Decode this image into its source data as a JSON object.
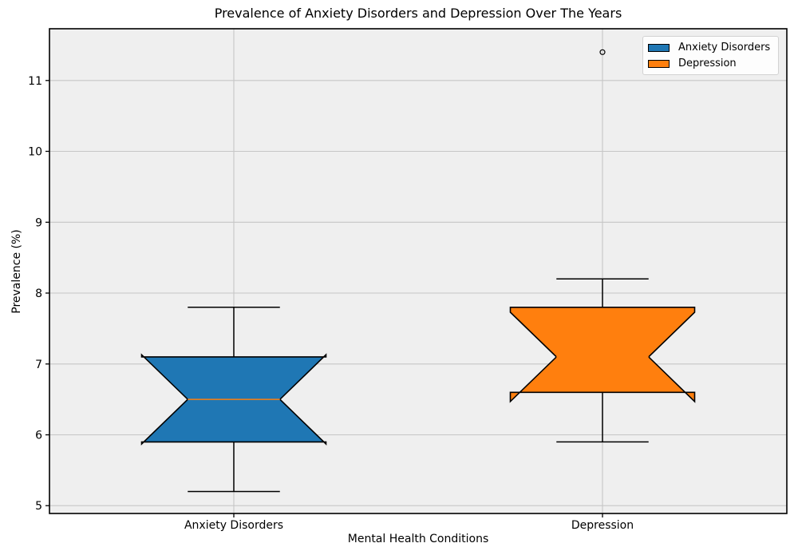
{
  "chart_data": {
    "type": "box",
    "title": "Prevalence of Anxiety Disorders and Depression Over The Years",
    "xlabel": "Mental Health Conditions",
    "ylabel": "Prevalence (%)",
    "categories": [
      "Anxiety Disorders",
      "Depression"
    ],
    "x_positions": [
      1,
      2
    ],
    "xlim": [
      0.5,
      2.5
    ],
    "ylim": [
      4.89,
      11.73
    ],
    "yticks": [
      5,
      6,
      7,
      8,
      9,
      10,
      11
    ],
    "grid": true,
    "notch": true,
    "box_width": 0.5,
    "legend_position": "upper right",
    "series": [
      {
        "name": "Anxiety Disorders",
        "color": "#1f77b4",
        "stats": {
          "whislo": 5.2,
          "q1": 5.9,
          "med": 6.5,
          "q3": 7.1,
          "whishi": 7.8,
          "cilo": 5.87,
          "cihi": 7.13,
          "fliers": []
        }
      },
      {
        "name": "Depression",
        "color": "#ff7f0e",
        "stats": {
          "whislo": 5.9,
          "q1": 6.6,
          "med": 7.1,
          "q3": 7.8,
          "whishi": 8.2,
          "cilo": 6.47,
          "cihi": 7.73,
          "fliers": [
            11.4
          ]
        }
      }
    ],
    "colors": {
      "median": "#ff7f0e",
      "box_edge": "#000000",
      "whisker": "#000000",
      "grid": "#c6c6c6",
      "axes_bg": "#efefef",
      "fig_bg": "#ffffff",
      "text": "#000000",
      "legend_bg": "#fdfdfd",
      "legend_border": "#d2d2d2"
    }
  }
}
